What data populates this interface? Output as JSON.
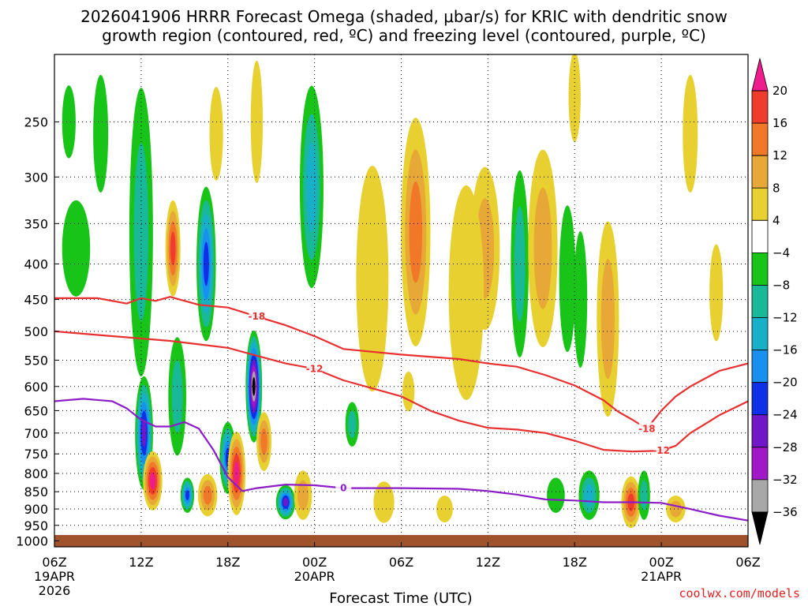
{
  "chart_data": {
    "type": "heatmap",
    "title_line1": "2026041906 HRRR Forecast Omega (shaded, μbar/s) for KRIC with dendritic snow",
    "title_line2": "growth region (contoured, red, ºC) and freezing level (contoured, purple, ºC)",
    "xlabel": "Forecast Time (UTC)",
    "x_ticks": [
      {
        "hour": 0,
        "label": "06Z",
        "date": "19APR",
        "year": "2026"
      },
      {
        "hour": 6,
        "label": "12Z"
      },
      {
        "hour": 12,
        "label": "18Z"
      },
      {
        "hour": 18,
        "label": "00Z",
        "date": "20APR"
      },
      {
        "hour": 24,
        "label": "06Z"
      },
      {
        "hour": 30,
        "label": "12Z"
      },
      {
        "hour": 36,
        "label": "18Z"
      },
      {
        "hour": 42,
        "label": "00Z",
        "date": "21APR"
      },
      {
        "hour": 48,
        "label": "06Z"
      }
    ],
    "y_ticks": [
      250,
      300,
      350,
      400,
      450,
      500,
      550,
      600,
      650,
      700,
      750,
      800,
      850,
      900,
      950,
      1000
    ],
    "y_scale": "log-pressure",
    "ylim": [
      200,
      1020
    ],
    "xlim": [
      0,
      48
    ],
    "grid": true,
    "colorbar": {
      "labels": [
        "20",
        "16",
        "12",
        "8",
        "4",
        "−4",
        "−8",
        "−12",
        "−16",
        "−20",
        "−24",
        "−28",
        "−32",
        "−36"
      ],
      "bins": [
        {
          "range": ">20",
          "color": "#ee1c8c"
        },
        {
          "range": "16-20",
          "color": "#f03c2c"
        },
        {
          "range": "12-16",
          "color": "#f07828"
        },
        {
          "range": "8-12",
          "color": "#e8a838"
        },
        {
          "range": "4-8",
          "color": "#e8d030"
        },
        {
          "range": "-4-4",
          "color": "#ffffff"
        },
        {
          "range": "-8 to -4",
          "color": "#18c418"
        },
        {
          "range": "-12 to -8",
          "color": "#18b898"
        },
        {
          "range": "-16 to -12",
          "color": "#18b0c8"
        },
        {
          "range": "-20 to -16",
          "color": "#1890f0"
        },
        {
          "range": "-24 to -20",
          "color": "#1030e8"
        },
        {
          "range": "-28 to -24",
          "color": "#7018c8"
        },
        {
          "range": "-32 to -28",
          "color": "#a018c8"
        },
        {
          "range": "-36 to -32",
          "color": "#a8a8a8"
        },
        {
          "range": "<-36",
          "color": "#000000"
        }
      ]
    },
    "contours": [
      {
        "label": "-18",
        "color": "#e83030",
        "points": [
          [
            0,
            448
          ],
          [
            3,
            448
          ],
          [
            5,
            456
          ],
          [
            6,
            448
          ],
          [
            7,
            452
          ],
          [
            8,
            446
          ],
          [
            10,
            458
          ],
          [
            12,
            462
          ],
          [
            14,
            476
          ],
          [
            16,
            490
          ],
          [
            18,
            508
          ],
          [
            20,
            530
          ],
          [
            24,
            540
          ],
          [
            28,
            548
          ],
          [
            30,
            556
          ],
          [
            32,
            562
          ],
          [
            34,
            578
          ],
          [
            36,
            598
          ],
          [
            38,
            628
          ],
          [
            39,
            652
          ],
          [
            40,
            670
          ],
          [
            41,
            690
          ],
          [
            42,
            650
          ],
          [
            43,
            620
          ],
          [
            44,
            600
          ],
          [
            46,
            570
          ],
          [
            48,
            556
          ]
        ]
      },
      {
        "label": "-12",
        "color": "#e83030",
        "points": [
          [
            0,
            500
          ],
          [
            3,
            506
          ],
          [
            6,
            512
          ],
          [
            8,
            516
          ],
          [
            10,
            522
          ],
          [
            12,
            528
          ],
          [
            14,
            542
          ],
          [
            16,
            556
          ],
          [
            18,
            566
          ],
          [
            20,
            588
          ],
          [
            24,
            620
          ],
          [
            26,
            650
          ],
          [
            28,
            672
          ],
          [
            30,
            688
          ],
          [
            32,
            692
          ],
          [
            34,
            700
          ],
          [
            36,
            718
          ],
          [
            38,
            740
          ],
          [
            40,
            744
          ],
          [
            42,
            742
          ],
          [
            43,
            730
          ],
          [
            44,
            700
          ],
          [
            45,
            680
          ],
          [
            46,
            660
          ],
          [
            48,
            630
          ]
        ]
      },
      {
        "label": "0",
        "color": "#8c1cc8",
        "points": [
          [
            0,
            630
          ],
          [
            2,
            625
          ],
          [
            4,
            630
          ],
          [
            5,
            645
          ],
          [
            6,
            670
          ],
          [
            7,
            685
          ],
          [
            8,
            685
          ],
          [
            9,
            675
          ],
          [
            10,
            690
          ],
          [
            11,
            740
          ],
          [
            12,
            810
          ],
          [
            13,
            848
          ],
          [
            14,
            840
          ],
          [
            16,
            830
          ],
          [
            18,
            832
          ],
          [
            20,
            840
          ],
          [
            24,
            840
          ],
          [
            28,
            842
          ],
          [
            30,
            848
          ],
          [
            32,
            858
          ],
          [
            34,
            872
          ],
          [
            36,
            875
          ],
          [
            38,
            880
          ],
          [
            40,
            880
          ],
          [
            42,
            882
          ],
          [
            44,
            900
          ],
          [
            46,
            920
          ],
          [
            48,
            935
          ]
        ]
      }
    ],
    "omega_cells": [
      {
        "hour": 1.0,
        "p": 250,
        "w": 0.5,
        "h": 60,
        "v": -6
      },
      {
        "hour": 3.2,
        "p": 260,
        "w": 0.6,
        "h": 100,
        "v": -6
      },
      {
        "hour": 1.5,
        "p": 380,
        "w": 1.5,
        "h": 120,
        "v": -6
      },
      {
        "hour": 6.0,
        "p": 360,
        "w": 1.2,
        "h": 320,
        "v": -8
      },
      {
        "hour": 6.2,
        "p": 700,
        "w": 0.8,
        "h": 260,
        "v": -26
      },
      {
        "hour": 6.8,
        "p": 820,
        "w": 0.9,
        "h": 160,
        "v": 22
      },
      {
        "hour": 8.2,
        "p": 380,
        "w": 0.6,
        "h": 120,
        "v": 16
      },
      {
        "hour": 8.5,
        "p": 620,
        "w": 0.8,
        "h": 240,
        "v": -10
      },
      {
        "hour": 9.2,
        "p": 860,
        "w": 0.5,
        "h": 100,
        "v": -22
      },
      {
        "hour": 10.6,
        "p": 860,
        "w": 0.9,
        "h": 120,
        "v": 14
      },
      {
        "hour": 10.5,
        "p": 400,
        "w": 0.9,
        "h": 200,
        "v": -22
      },
      {
        "hour": 11.2,
        "p": 260,
        "w": 0.5,
        "h": 80,
        "v": 5
      },
      {
        "hour": 12.0,
        "p": 760,
        "w": 0.7,
        "h": 180,
        "v": -20
      },
      {
        "hour": 12.6,
        "p": 800,
        "w": 0.8,
        "h": 220,
        "v": 22
      },
      {
        "hour": 13.8,
        "p": 600,
        "w": 0.7,
        "h": 220,
        "v": -38
      },
      {
        "hour": 14.5,
        "p": 720,
        "w": 0.6,
        "h": 140,
        "v": 12
      },
      {
        "hour": 16.0,
        "p": 880,
        "w": 0.9,
        "h": 100,
        "v": -26
      },
      {
        "hour": 17.2,
        "p": 860,
        "w": 0.8,
        "h": 140,
        "v": 10
      },
      {
        "hour": 17.8,
        "p": 310,
        "w": 1.2,
        "h": 200,
        "v": -14
      },
      {
        "hour": 25.0,
        "p": 360,
        "w": 1.6,
        "h": 260,
        "v": 12
      },
      {
        "hour": 22.0,
        "p": 420,
        "w": 1.8,
        "h": 300,
        "v": 6
      },
      {
        "hour": 29.8,
        "p": 380,
        "w": 1.6,
        "h": 200,
        "v": 10
      },
      {
        "hour": 28.5,
        "p": 440,
        "w": 2.0,
        "h": 300,
        "v": 6
      },
      {
        "hour": 32.2,
        "p": 400,
        "w": 0.8,
        "h": 240,
        "v": -10
      },
      {
        "hour": 33.8,
        "p": 380,
        "w": 1.6,
        "h": 240,
        "v": 9
      },
      {
        "hour": 35.5,
        "p": 420,
        "w": 0.7,
        "h": 200,
        "v": -6
      },
      {
        "hour": 38.3,
        "p": 480,
        "w": 1.1,
        "h": 300,
        "v": 8
      },
      {
        "hour": 36.4,
        "p": 450,
        "w": 0.5,
        "h": 200,
        "v": -6
      },
      {
        "hour": 37.0,
        "p": 860,
        "w": 1.0,
        "h": 140,
        "v": -14
      },
      {
        "hour": 39.9,
        "p": 880,
        "w": 0.9,
        "h": 150,
        "v": 18
      },
      {
        "hour": 34.7,
        "p": 860,
        "w": 0.8,
        "h": 100,
        "v": -6
      },
      {
        "hour": 40.8,
        "p": 860,
        "w": 0.4,
        "h": 140,
        "v": -8
      },
      {
        "hour": 43.0,
        "p": 900,
        "w": 0.9,
        "h": 80,
        "v": 10
      },
      {
        "hour": 22.8,
        "p": 880,
        "w": 1.0,
        "h": 120,
        "v": 6
      },
      {
        "hour": 27.0,
        "p": 900,
        "w": 0.7,
        "h": 80,
        "v": 5
      },
      {
        "hour": 20.6,
        "p": 680,
        "w": 0.5,
        "h": 100,
        "v": -8
      },
      {
        "hour": 45.8,
        "p": 440,
        "w": 0.5,
        "h": 140,
        "v": 5
      },
      {
        "hour": 24.5,
        "p": 610,
        "w": 0.4,
        "h": 80,
        "v": 5
      },
      {
        "hour": 44.0,
        "p": 260,
        "w": 0.6,
        "h": 100,
        "v": 5
      },
      {
        "hour": 14.0,
        "p": 250,
        "w": 0.4,
        "h": 100,
        "v": 5
      },
      {
        "hour": 36.0,
        "p": 230,
        "w": 0.4,
        "h": 80,
        "v": 5
      }
    ]
  },
  "credit": "coolwx.com/models",
  "credit_color": "#e02020"
}
